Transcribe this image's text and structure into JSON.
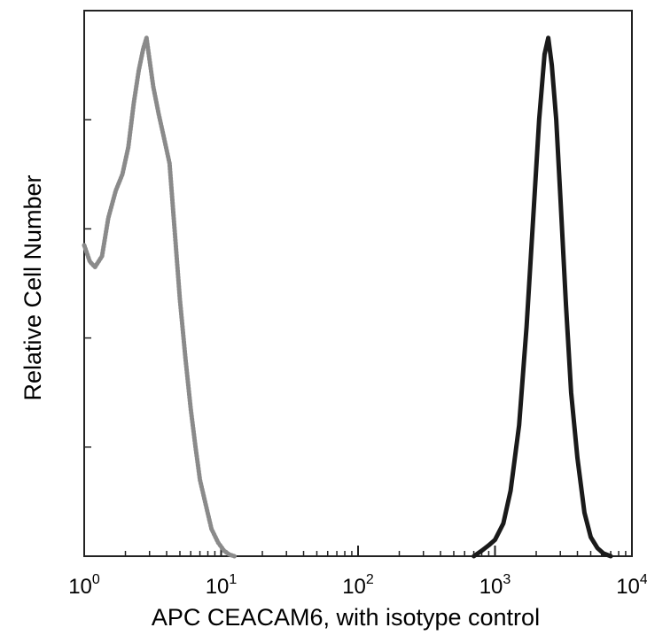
{
  "chart_data": {
    "type": "line",
    "title": "",
    "xlabel": "APC CEACAM6, with isotype control",
    "ylabel": "Relative Cell Number",
    "x_scale": "log",
    "xlim": [
      1,
      10000
    ],
    "ylim": [
      0,
      1
    ],
    "grid": false,
    "legend": "none",
    "x_ticks": [
      {
        "value": 1,
        "base": "10",
        "exp": "0"
      },
      {
        "value": 10,
        "base": "10",
        "exp": "1"
      },
      {
        "value": 100,
        "base": "10",
        "exp": "2"
      },
      {
        "value": 1000,
        "base": "10",
        "exp": "3"
      },
      {
        "value": 10000,
        "base": "10",
        "exp": "4"
      }
    ],
    "series": [
      {
        "color": "#8a8a8a",
        "style": "dotted",
        "x": [
          1.0,
          1.1,
          1.2,
          1.35,
          1.5,
          1.7,
          1.9,
          2.1,
          2.3,
          2.5,
          2.7,
          2.85,
          3.0,
          3.2,
          3.5,
          3.8,
          4.2,
          4.6,
          5.0,
          5.5,
          6.0,
          6.5,
          7.0,
          7.8,
          8.5,
          9.5,
          10.5,
          11.5,
          12.5
        ],
        "y": [
          0.57,
          0.54,
          0.53,
          0.55,
          0.62,
          0.67,
          0.7,
          0.75,
          0.83,
          0.89,
          0.93,
          0.95,
          0.91,
          0.86,
          0.81,
          0.77,
          0.72,
          0.59,
          0.47,
          0.36,
          0.27,
          0.2,
          0.14,
          0.09,
          0.05,
          0.025,
          0.01,
          0.003,
          0.0
        ]
      },
      {
        "color": "#1a1a1a",
        "style": "solid",
        "x": [
          700,
          800,
          900,
          1000,
          1150,
          1300,
          1500,
          1700,
          1900,
          2100,
          2300,
          2450,
          2600,
          2800,
          3000,
          3300,
          3600,
          4000,
          4500,
          5000,
          5600,
          6200,
          7000
        ],
        "y": [
          0.0,
          0.01,
          0.02,
          0.03,
          0.06,
          0.12,
          0.24,
          0.42,
          0.62,
          0.8,
          0.92,
          0.95,
          0.9,
          0.8,
          0.66,
          0.46,
          0.3,
          0.18,
          0.08,
          0.035,
          0.015,
          0.005,
          0.0
        ]
      }
    ]
  }
}
